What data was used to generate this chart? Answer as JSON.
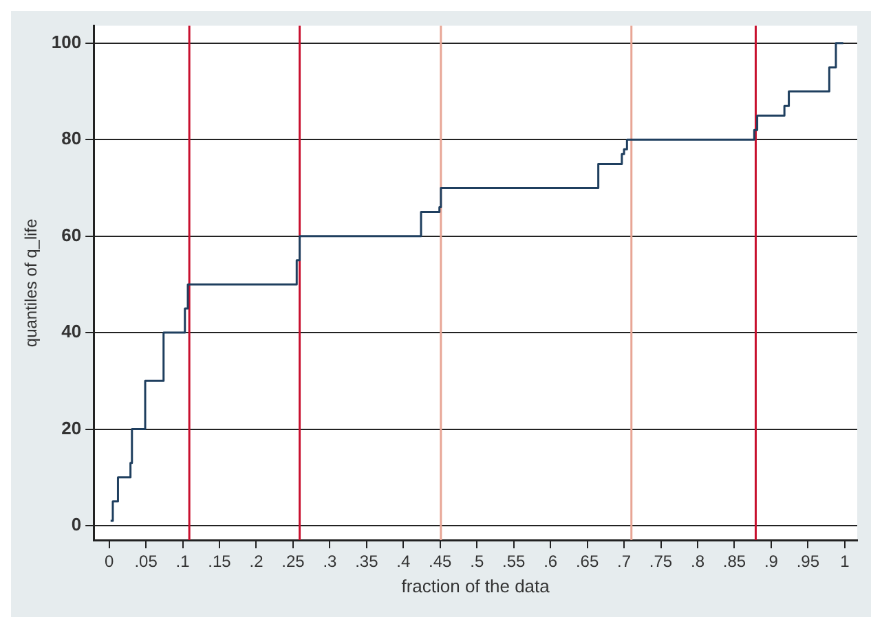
{
  "chart_data": {
    "type": "step",
    "xlabel": "fraction of the data",
    "ylabel": "quantiles of q_life",
    "x": [
      0.002,
      0.005,
      0.012,
      0.029,
      0.031,
      0.049,
      0.074,
      0.103,
      0.107,
      0.255,
      0.259,
      0.424,
      0.449,
      0.451,
      0.665,
      0.697,
      0.7,
      0.704,
      0.877,
      0.881,
      0.918,
      0.924,
      0.979,
      0.988,
      0.998
    ],
    "series": [
      {
        "color": "#1f3f5f",
        "values": [
          1,
          5,
          10,
          13,
          20,
          30,
          40,
          45,
          50,
          55,
          60,
          65,
          66,
          70,
          75,
          77,
          78,
          80,
          82,
          85,
          87,
          90,
          95,
          100,
          100
        ]
      }
    ],
    "xlim": [
      -0.021,
      1.017
    ],
    "ylim": [
      -3,
      103.6
    ],
    "xticks": [
      0,
      {
        "value": 0.05,
        "label": ".05"
      },
      {
        "value": 0.1,
        "label": ".1"
      },
      {
        "value": 0.15,
        "label": ".15"
      },
      {
        "value": 0.2,
        "label": ".2"
      },
      {
        "value": 0.25,
        "label": ".25"
      },
      {
        "value": 0.3,
        "label": ".3"
      },
      {
        "value": 0.35,
        "label": ".35"
      },
      {
        "value": 0.4,
        "label": ".4"
      },
      {
        "value": 0.45,
        "label": ".45"
      },
      {
        "value": 0.5,
        "label": ".5"
      },
      {
        "value": 0.55,
        "label": ".55"
      },
      {
        "value": 0.6,
        "label": ".6"
      },
      {
        "value": 0.65,
        "label": ".65"
      },
      {
        "value": 0.7,
        "label": ".7"
      },
      {
        "value": 0.75,
        "label": ".75"
      },
      {
        "value": 0.8,
        "label": ".8"
      },
      {
        "value": 0.85,
        "label": ".85"
      },
      {
        "value": 0.9,
        "label": ".9"
      },
      {
        "value": 0.95,
        "label": ".95"
      },
      1
    ],
    "yticks": [
      0,
      20,
      40,
      60,
      80,
      100
    ],
    "grid": "y",
    "legend": false,
    "marker": "none",
    "line_style": "solid",
    "ref_lines": [
      {
        "axis": "x",
        "value": 0.109,
        "color": "#c8102e"
      },
      {
        "axis": "x",
        "value": 0.259,
        "color": "#c8102e"
      },
      {
        "axis": "x",
        "value": 0.451,
        "color": "#e8a595"
      },
      {
        "axis": "x",
        "value": 0.71,
        "color": "#e8a595"
      },
      {
        "axis": "x",
        "value": 0.879,
        "color": "#c8102e"
      }
    ]
  }
}
